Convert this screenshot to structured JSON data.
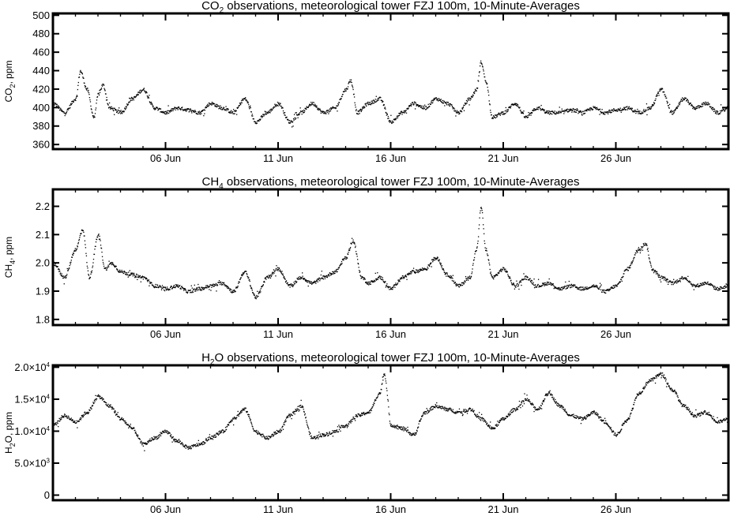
{
  "chart_data": [
    {
      "type": "scatter",
      "title": {
        "pre": "CO",
        "sub": "2",
        "post": " observations, meteorological tower FZJ 100m, 10-Minute-Averages"
      },
      "ylabel": {
        "pre": "CO",
        "sub": "2",
        "post": ", ppm"
      },
      "xlabel": "",
      "x_unit": "day of June",
      "xlim": [
        1,
        31
      ],
      "x_ticks": [
        {
          "x": 6,
          "label": "06 Jun"
        },
        {
          "x": 11,
          "label": "11 Jun"
        },
        {
          "x": 16,
          "label": "16 Jun"
        },
        {
          "x": 21,
          "label": "21 Jun"
        },
        {
          "x": 26,
          "label": "26 Jun"
        }
      ],
      "ylim": [
        355,
        502
      ],
      "y_ticks": [
        {
          "v": 360,
          "label": "360"
        },
        {
          "v": 380,
          "label": "380"
        },
        {
          "v": 400,
          "label": "400"
        },
        {
          "v": 420,
          "label": "420"
        },
        {
          "v": 440,
          "label": "440"
        },
        {
          "v": 460,
          "label": "460"
        },
        {
          "v": 480,
          "label": "480"
        },
        {
          "v": 500,
          "label": "500"
        }
      ],
      "grid": false,
      "color": "#000000",
      "series": [
        {
          "x": [
            1.0,
            1.5,
            2.0,
            2.2,
            2.5,
            2.8,
            3.0,
            3.2,
            3.5,
            4.0,
            4.5,
            5.0,
            5.5,
            6.0,
            6.5,
            7.0,
            7.5,
            8.0,
            8.5,
            9.0,
            9.5,
            10.0,
            10.5,
            11.0,
            11.5,
            12.0,
            12.5,
            13.0,
            13.5,
            14.0,
            14.2,
            14.5,
            15.0,
            15.5,
            16.0,
            16.5,
            17.0,
            17.5,
            18.0,
            18.5,
            19.0,
            19.5,
            19.8,
            20.0,
            20.2,
            20.5,
            21.0,
            21.5,
            22.0,
            22.5,
            23.0,
            23.5,
            24.0,
            24.5,
            25.0,
            25.5,
            26.0,
            26.5,
            27.0,
            27.5,
            28.0,
            28.5,
            29.0,
            29.5,
            30.0,
            30.5,
            31.0
          ],
          "y": [
            405,
            395,
            410,
            440,
            420,
            390,
            415,
            425,
            400,
            395,
            410,
            420,
            400,
            395,
            400,
            398,
            395,
            405,
            400,
            395,
            410,
            385,
            395,
            405,
            385,
            395,
            405,
            395,
            400,
            420,
            430,
            395,
            405,
            410,
            385,
            395,
            405,
            400,
            410,
            405,
            395,
            410,
            420,
            450,
            430,
            390,
            395,
            405,
            390,
            400,
            395,
            395,
            398,
            395,
            400,
            395,
            398,
            400,
            395,
            400,
            420,
            395,
            410,
            400,
            405,
            395,
            400
          ]
        }
      ]
    },
    {
      "type": "scatter",
      "title": {
        "pre": "CH",
        "sub": "4",
        "post": " observations, meteorological tower FZJ 100m, 10-Minute-Averages"
      },
      "ylabel": {
        "pre": "CH",
        "sub": "4",
        "post": ", ppm"
      },
      "xlabel": "",
      "x_unit": "day of June",
      "xlim": [
        1,
        31
      ],
      "x_ticks": [
        {
          "x": 6,
          "label": "06 Jun"
        },
        {
          "x": 11,
          "label": "11 Jun"
        },
        {
          "x": 16,
          "label": "16 Jun"
        },
        {
          "x": 21,
          "label": "21 Jun"
        },
        {
          "x": 26,
          "label": "26 Jun"
        }
      ],
      "ylim": [
        1.78,
        2.26
      ],
      "y_ticks": [
        {
          "v": 1.8,
          "label": "1.8"
        },
        {
          "v": 1.9,
          "label": "1.9"
        },
        {
          "v": 2.0,
          "label": "2.0"
        },
        {
          "v": 2.1,
          "label": "2.1"
        },
        {
          "v": 2.2,
          "label": "2.2"
        }
      ],
      "grid": false,
      "color": "#000000",
      "series": [
        {
          "x": [
            1.0,
            1.5,
            2.0,
            2.3,
            2.6,
            3.0,
            3.3,
            3.6,
            4.0,
            4.5,
            5.0,
            5.5,
            6.0,
            6.5,
            7.0,
            7.5,
            8.0,
            8.5,
            9.0,
            9.5,
            10.0,
            10.5,
            11.0,
            11.5,
            12.0,
            12.5,
            13.0,
            13.5,
            14.0,
            14.3,
            14.7,
            15.0,
            15.5,
            16.0,
            16.5,
            17.0,
            17.5,
            18.0,
            18.5,
            19.0,
            19.5,
            19.8,
            20.0,
            20.2,
            20.5,
            21.0,
            21.5,
            22.0,
            22.5,
            23.0,
            23.5,
            24.0,
            24.5,
            25.0,
            25.5,
            26.0,
            26.5,
            27.0,
            27.3,
            27.6,
            28.0,
            28.5,
            29.0,
            29.5,
            30.0,
            30.5,
            31.0
          ],
          "y": [
            2.0,
            1.95,
            2.05,
            2.12,
            1.95,
            2.1,
            1.98,
            2.0,
            1.97,
            1.96,
            1.95,
            1.92,
            1.91,
            1.92,
            1.9,
            1.91,
            1.92,
            1.93,
            1.9,
            1.97,
            1.88,
            1.95,
            1.98,
            1.92,
            1.95,
            1.93,
            1.95,
            1.97,
            2.02,
            2.08,
            1.95,
            1.93,
            1.95,
            1.91,
            1.95,
            1.97,
            1.98,
            2.02,
            1.96,
            1.92,
            1.95,
            2.05,
            2.2,
            2.05,
            1.95,
            1.98,
            1.92,
            1.95,
            1.92,
            1.93,
            1.91,
            1.92,
            1.91,
            1.92,
            1.9,
            1.92,
            1.98,
            2.05,
            2.07,
            1.98,
            1.95,
            1.93,
            1.95,
            1.92,
            1.93,
            1.91,
            1.92
          ]
        }
      ]
    },
    {
      "type": "scatter",
      "title": {
        "pre": "H",
        "sub": "2",
        "post": "O observations, meteorological tower FZJ 100m, 10-Minute-Averages"
      },
      "ylabel": {
        "pre": "H",
        "sub": "2",
        "post": "O, ppm"
      },
      "xlabel": "",
      "x_unit": "day of June",
      "xlim": [
        1,
        31
      ],
      "x_ticks": [
        {
          "x": 6,
          "label": "06 Jun"
        },
        {
          "x": 11,
          "label": "11 Jun"
        },
        {
          "x": 16,
          "label": "16 Jun"
        },
        {
          "x": 21,
          "label": "21 Jun"
        },
        {
          "x": 26,
          "label": "26 Jun"
        }
      ],
      "ylim": [
        -800,
        20300
      ],
      "y_ticks": [
        {
          "v": 0,
          "label": "0",
          "exp": ""
        },
        {
          "v": 5000,
          "label": "5.0×10",
          "exp": "3"
        },
        {
          "v": 10000,
          "label": "1.0×10",
          "exp": "4"
        },
        {
          "v": 15000,
          "label": "1.5×10",
          "exp": "4"
        },
        {
          "v": 20000,
          "label": "2.0×10",
          "exp": "4"
        }
      ],
      "grid": false,
      "color": "#000000",
      "series": [
        {
          "x": [
            1.0,
            1.5,
            2.0,
            2.5,
            3.0,
            3.5,
            4.0,
            4.5,
            5.0,
            5.5,
            6.0,
            6.5,
            7.0,
            7.5,
            8.0,
            8.5,
            9.0,
            9.5,
            10.0,
            10.5,
            11.0,
            11.5,
            12.0,
            12.5,
            13.0,
            13.5,
            14.0,
            14.5,
            15.0,
            15.5,
            15.7,
            16.0,
            16.5,
            17.0,
            17.5,
            18.0,
            18.5,
            19.0,
            19.5,
            20.0,
            20.5,
            21.0,
            21.5,
            22.0,
            22.5,
            23.0,
            23.5,
            24.0,
            24.5,
            25.0,
            25.5,
            26.0,
            26.5,
            27.0,
            27.5,
            28.0,
            28.5,
            29.0,
            29.5,
            30.0,
            30.5,
            31.0
          ],
          "y": [
            11000,
            12500,
            11500,
            13000,
            15500,
            14000,
            12000,
            10500,
            8000,
            9000,
            10000,
            8500,
            7500,
            8000,
            9000,
            10000,
            12000,
            13500,
            10000,
            9000,
            10000,
            12500,
            14000,
            9000,
            9500,
            10000,
            11000,
            12500,
            13000,
            16000,
            19000,
            11000,
            10500,
            9500,
            13000,
            14000,
            13500,
            13000,
            13500,
            12000,
            10500,
            12000,
            13500,
            15000,
            13500,
            16000,
            14000,
            12500,
            12000,
            13000,
            11500,
            9500,
            12000,
            16000,
            18000,
            19000,
            16500,
            14000,
            12500,
            13000,
            11500,
            12000
          ]
        }
      ]
    }
  ]
}
